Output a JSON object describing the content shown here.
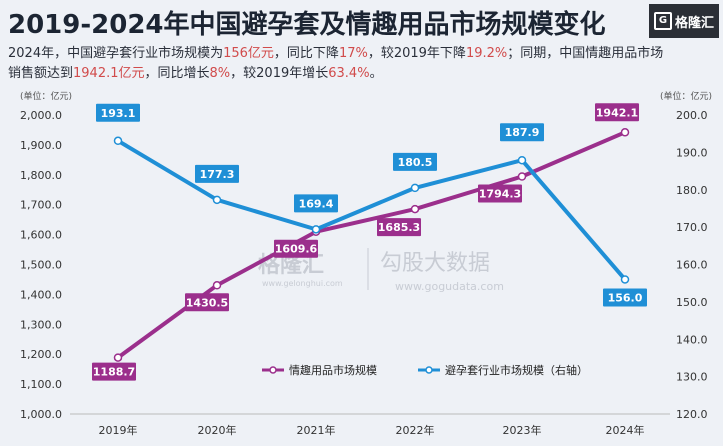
{
  "header": {
    "title": "2019-2024年中国避孕套及情趣用品市场规模变化",
    "logo_text": "格隆汇"
  },
  "summary": {
    "p1": "2024年，中国避孕套行业市场规模为",
    "v1": "156亿元",
    "p2": "，同比下降",
    "v2": "17%",
    "p3": "，较2019年下降",
    "v3": "19.2%",
    "p4": "；同期，中国情趣用品市场销售额达到",
    "v4": "1942.1亿元",
    "p5": "，同比增长",
    "v5": "8%",
    "p6": "，较2019年增长",
    "v6": "63.4%",
    "p7": "。"
  },
  "watermark": {
    "brand": "格隆汇",
    "brand_url": "www.gelonghui.com",
    "partner": "勾股大数据",
    "partner_url": "www.gogudata.com"
  },
  "chart_data": {
    "type": "line",
    "categories": [
      "2019年",
      "2020年",
      "2021年",
      "2022年",
      "2023年",
      "2024年"
    ],
    "y_left": {
      "unit": "(单位：亿元)",
      "range": [
        1000,
        2000
      ],
      "ticks": [
        "1,000.0",
        "1,100.0",
        "1,200.0",
        "1,300.0",
        "1,400.0",
        "1,500.0",
        "1,600.0",
        "1,700.0",
        "1,800.0",
        "1,900.0",
        "2,000.0"
      ]
    },
    "y_right": {
      "unit": "(单位：亿元)",
      "range": [
        120,
        200
      ],
      "ticks": [
        "120.0",
        "130.0",
        "140.0",
        "150.0",
        "160.0",
        "170.0",
        "180.0",
        "190.0",
        "200.0"
      ]
    },
    "series": [
      {
        "name": "情趣用品市场规模",
        "axis": "left",
        "color": "#9b2f8c",
        "values": [
          1188.7,
          1430.5,
          1609.6,
          1685.3,
          1794.3,
          1942.1
        ],
        "labels": [
          "1188.7",
          "1430.5",
          "1609.6",
          "1685.3",
          "1794.3",
          "1942.1"
        ]
      },
      {
        "name": "避孕套行业市场规模（右轴）",
        "axis": "right",
        "color": "#1f8fd6",
        "values": [
          193.1,
          177.3,
          169.4,
          180.5,
          187.9,
          156.0
        ],
        "labels": [
          "193.1",
          "177.3",
          "169.4",
          "180.5",
          "187.9",
          "156.0"
        ]
      }
    ],
    "legend_position": "bottom-right",
    "grid": false
  }
}
